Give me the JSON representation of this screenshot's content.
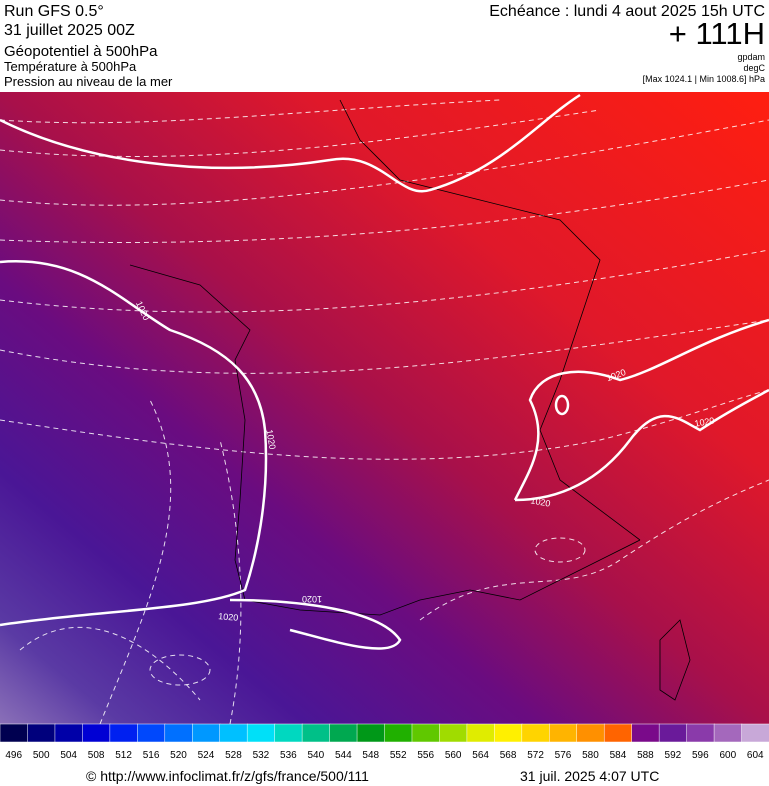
{
  "header": {
    "run": "Run GFS 0.5°",
    "date": "31 juillet 2025 00Z",
    "field1": "Géopotentiel à 500hPa",
    "field2": "Température à 500hPa",
    "field3": "Pression au niveau de la mer",
    "echeance": "Echéance : lundi 4 aout 2025 15h UTC",
    "lead": "+ 111H",
    "unit1": "gpdam",
    "unit2": "degC",
    "range": "[Max 1024.1 | Min 1008.6] hPa"
  },
  "isobar_labels": [
    "1020",
    "1020",
    "1020",
    "1020",
    "1020",
    "1020",
    "1020"
  ],
  "colorbar": {
    "labels": [
      496,
      500,
      504,
      508,
      512,
      516,
      520,
      524,
      528,
      532,
      536,
      540,
      544,
      548,
      552,
      556,
      560,
      564,
      568,
      572,
      576,
      580,
      584,
      588,
      592,
      596,
      600,
      604
    ]
  },
  "footer": {
    "url": "© http://www.infoclimat.fr/z/gfs/france/500/111",
    "timestamp": "31 juil. 2025  4:07 UTC"
  }
}
